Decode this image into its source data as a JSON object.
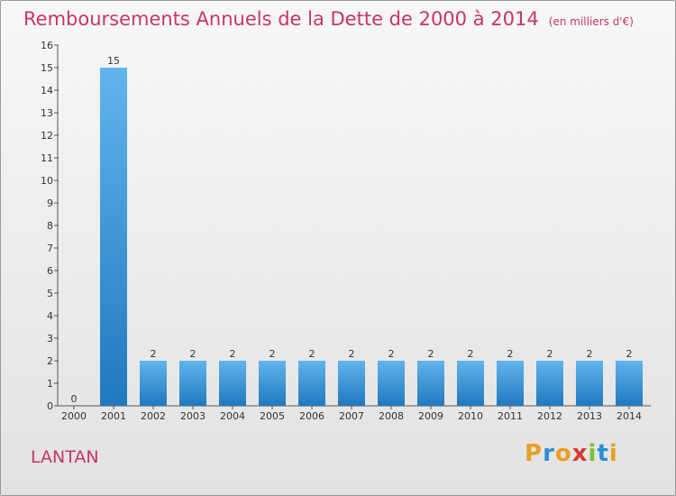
{
  "header": {
    "title": "Remboursements Annuels de la Dette de 2000 à 2014",
    "subtitle": "(en milliers d'€)"
  },
  "footer": {
    "place": "LANTAN",
    "brand": "Proxiti"
  },
  "colors": {
    "accent": "#c8346a",
    "bar_light": "#62b4ec",
    "bar_dark": "#1f79bf"
  },
  "chart_data": {
    "type": "bar",
    "categories": [
      "2000",
      "2001",
      "2002",
      "2003",
      "2004",
      "2005",
      "2006",
      "2007",
      "2008",
      "2009",
      "2010",
      "2011",
      "2012",
      "2013",
      "2014"
    ],
    "values": [
      0,
      15,
      2,
      2,
      2,
      2,
      2,
      2,
      2,
      2,
      2,
      2,
      2,
      2,
      2
    ],
    "data_labels": [
      "0",
      "15",
      "2",
      "2",
      "2",
      "2",
      "2",
      "2",
      "2",
      "2",
      "2",
      "2",
      "2",
      "2",
      "2"
    ],
    "y_ticks": [
      0,
      1,
      2,
      3,
      4,
      5,
      6,
      7,
      8,
      9,
      10,
      11,
      12,
      13,
      14,
      15,
      16
    ],
    "ylim": [
      0,
      16
    ],
    "grid": false,
    "legend": "none"
  }
}
